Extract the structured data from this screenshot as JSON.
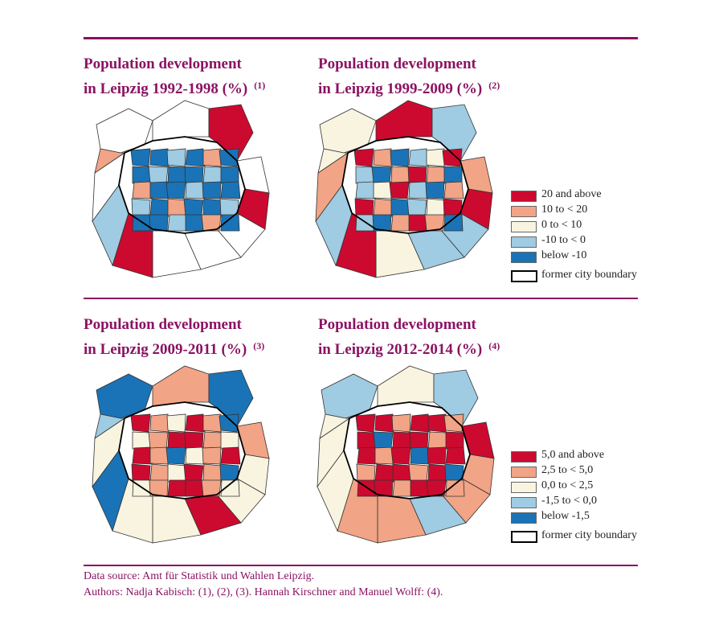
{
  "colors": {
    "accent": "#8b1363",
    "dark_red": "#cc0a2f",
    "salmon": "#f2a486",
    "cream": "#f8f4e0",
    "light_blue": "#9fcbe3",
    "dark_blue": "#1a73b6",
    "white": "#ffffff"
  },
  "maps": [
    {
      "title_line1": "Population development",
      "title_line2": "in Leipzig 1992-1998 (%)",
      "ref": "(1)"
    },
    {
      "title_line1": "Population development",
      "title_line2": "in Leipzig 1999-2009 (%)",
      "ref": "(2)"
    },
    {
      "title_line1": "Population development",
      "title_line2": "in Leipzig 2009-2011 (%)",
      "ref": "(3)"
    },
    {
      "title_line1": "Population development",
      "title_line2": "in Leipzig 2012-2014 (%)",
      "ref": "(4)"
    }
  ],
  "legend_top": {
    "items": [
      {
        "label": "20 and above",
        "color": "#cc0a2f"
      },
      {
        "label": "10 to < 20",
        "color": "#f2a486"
      },
      {
        "label": "0 to < 10",
        "color": "#f8f4e0"
      },
      {
        "label": "-10 to < 0",
        "color": "#9fcbe3"
      },
      {
        "label": "below -10",
        "color": "#1a73b6"
      }
    ],
    "boundary_label": "former city boundary"
  },
  "legend_bottom": {
    "items": [
      {
        "label": "5,0 and above",
        "color": "#cc0a2f"
      },
      {
        "label": "2,5 to < 5,0",
        "color": "#f2a486"
      },
      {
        "label": "0,0 to < 2,5",
        "color": "#f8f4e0"
      },
      {
        "label": "-1,5 to < 0,0",
        "color": "#9fcbe3"
      },
      {
        "label": "below -1,5",
        "color": "#1a73b6"
      }
    ],
    "boundary_label": "former city boundary"
  },
  "footer": {
    "source": "Data source: Amt für Statistik und Wahlen Leipzig.",
    "authors": "Authors: Nadja Kabisch: (1), (2), (3). Hannah Kirschner and Manuel Wolff: (4)."
  }
}
